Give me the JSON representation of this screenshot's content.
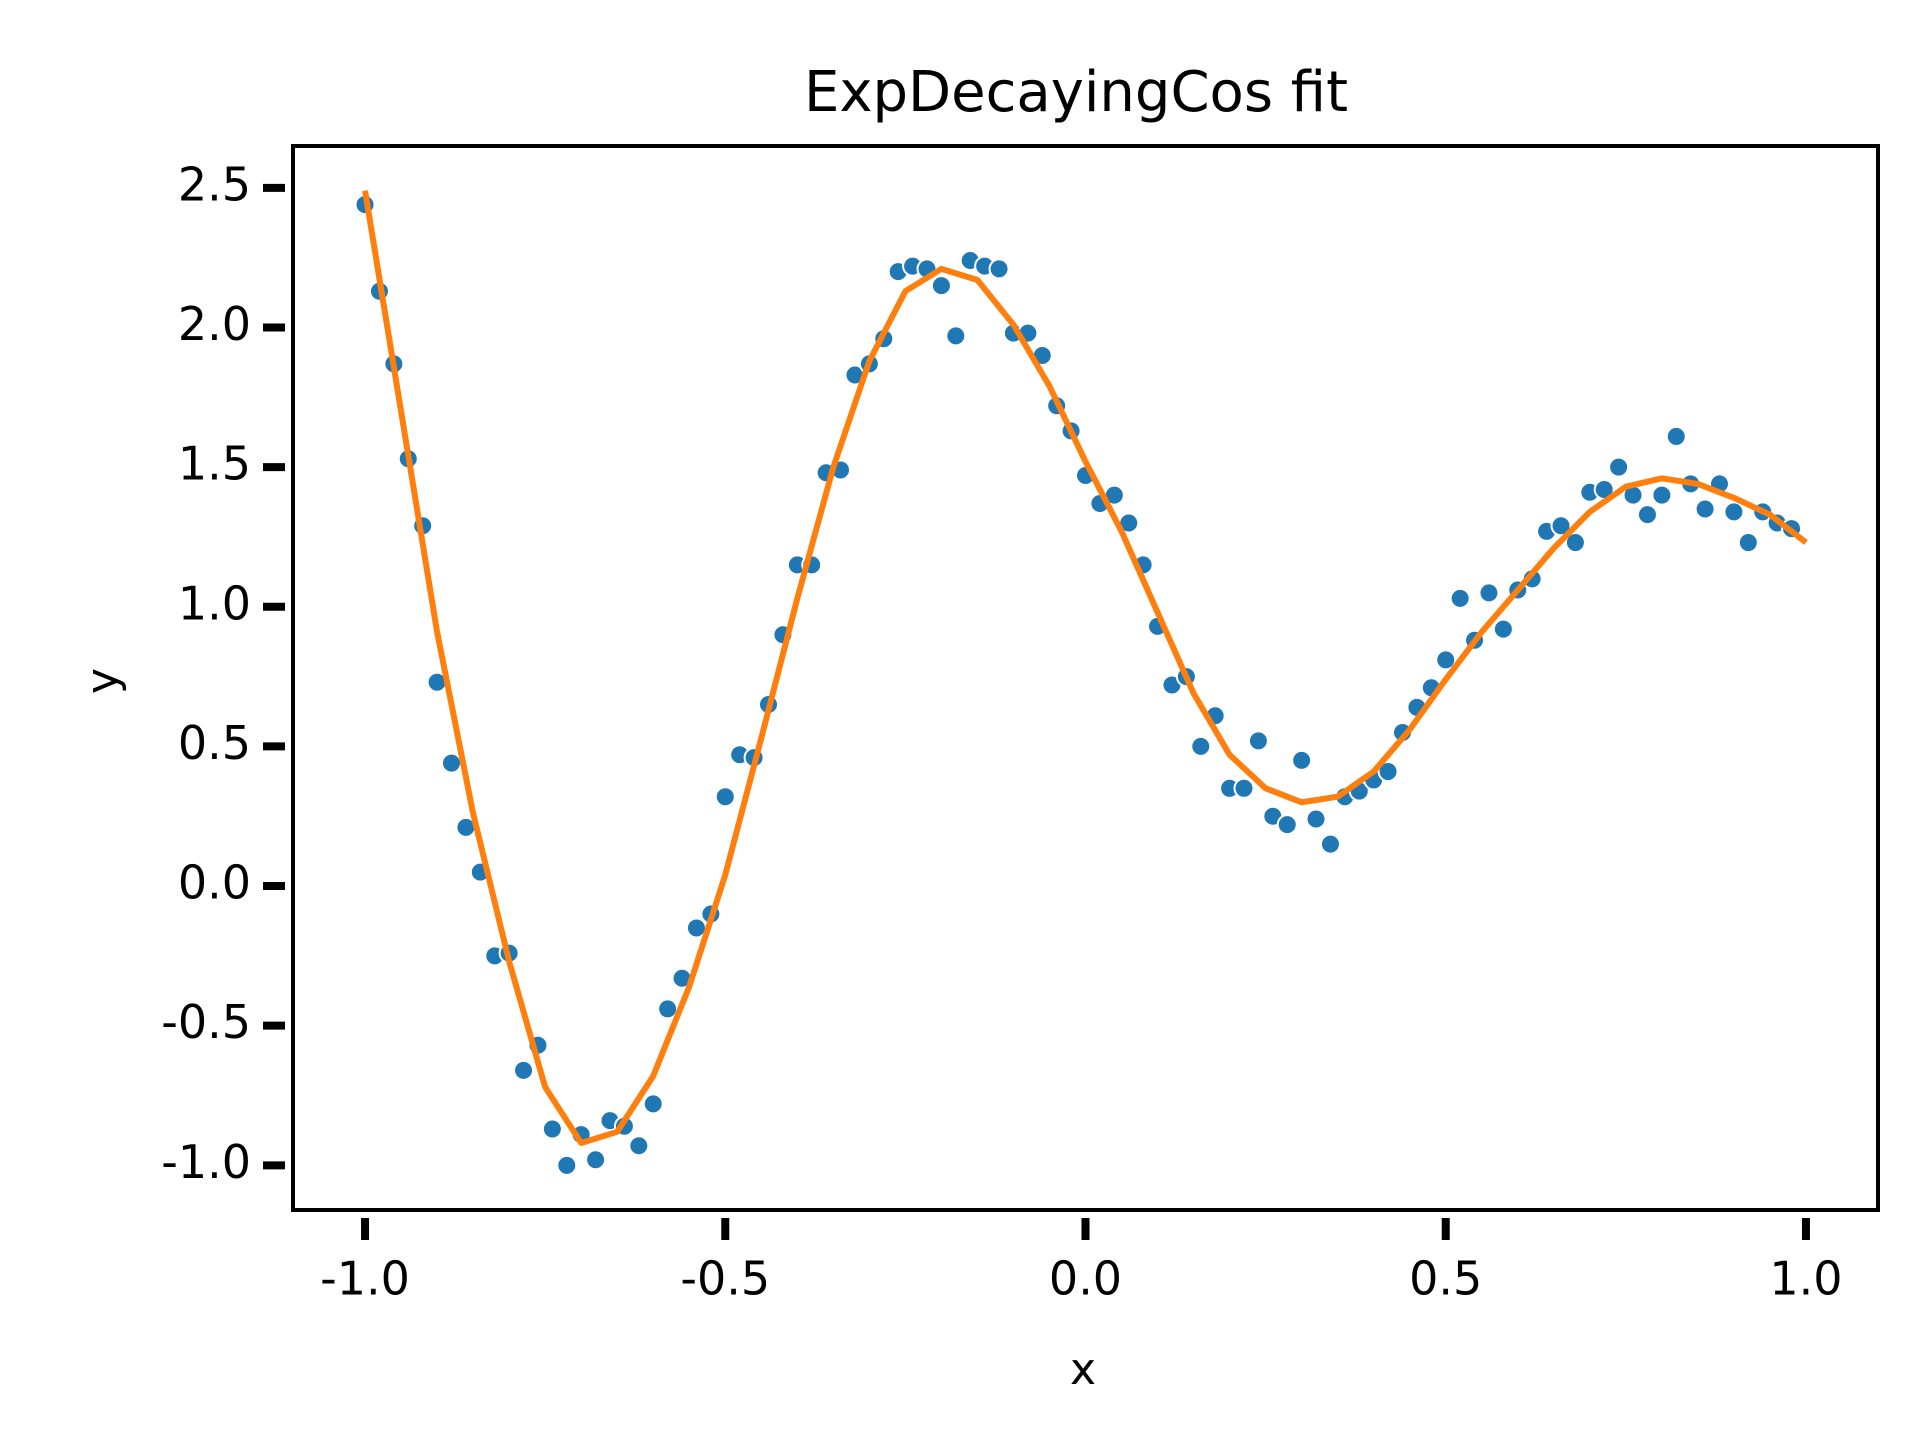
{
  "chart_data": {
    "type": "scatter",
    "title": "ExpDecayingCos fit",
    "xlabel": "x",
    "ylabel": "y",
    "xlim": [
      -1.1,
      1.1
    ],
    "ylim": [
      -1.16,
      2.65
    ],
    "xticks": [
      {
        "value": -1,
        "label": "-1.0"
      },
      -0.5,
      {
        "value": 0,
        "label": "0.0"
      },
      0.5,
      {
        "value": 1,
        "label": "1.0"
      }
    ],
    "yticks": [
      {
        "value": -1,
        "label": "-1.0"
      },
      -0.5,
      {
        "value": 0,
        "label": "0.0"
      },
      0.5,
      {
        "value": 1,
        "label": "1.0"
      },
      1.5,
      {
        "value": 2,
        "label": "2.0"
      },
      2.5
    ],
    "series": [
      {
        "type": "scatter",
        "color": "#1f77b4",
        "x": [
          -1.0,
          -0.98,
          -0.96,
          -0.94,
          -0.92,
          -0.9,
          -0.88,
          -0.86,
          -0.84,
          -0.82,
          -0.8,
          -0.78,
          -0.76,
          -0.74,
          -0.72,
          -0.7,
          -0.68,
          -0.66,
          -0.64,
          -0.62,
          -0.6,
          -0.58,
          -0.56,
          -0.54,
          -0.52,
          -0.5,
          -0.48,
          -0.46,
          -0.44,
          -0.42,
          -0.4,
          -0.38,
          -0.36,
          -0.34,
          -0.32,
          -0.3,
          -0.28,
          -0.26,
          -0.24,
          -0.22,
          -0.2,
          -0.18,
          -0.16,
          -0.14,
          -0.12,
          -0.1,
          -0.08,
          -0.06,
          -0.04,
          -0.02,
          0.0,
          0.02,
          0.04,
          0.06,
          0.08,
          0.1,
          0.12,
          0.14,
          0.16,
          0.18,
          0.2,
          0.22,
          0.24,
          0.26,
          0.28,
          0.3,
          0.32,
          0.34,
          0.36,
          0.38,
          0.4,
          0.42,
          0.44,
          0.46,
          0.48,
          0.5,
          0.52,
          0.54,
          0.56,
          0.58,
          0.6,
          0.62,
          0.64,
          0.66,
          0.68,
          0.7,
          0.72,
          0.74,
          0.76,
          0.78,
          0.8,
          0.82,
          0.84,
          0.86,
          0.88,
          0.9,
          0.92,
          0.94,
          0.96,
          0.98
        ],
        "values": [
          2.44,
          2.13,
          1.87,
          1.53,
          1.29,
          0.73,
          0.44,
          0.21,
          0.05,
          -0.25,
          -0.24,
          -0.66,
          -0.57,
          -0.87,
          -1.0,
          -0.89,
          -0.98,
          -0.84,
          -0.86,
          -0.93,
          -0.78,
          -0.44,
          -0.33,
          -0.15,
          -0.1,
          0.32,
          0.47,
          0.46,
          0.65,
          0.9,
          1.15,
          1.15,
          1.48,
          1.49,
          1.83,
          1.87,
          1.96,
          2.2,
          2.22,
          2.21,
          2.15,
          1.97,
          2.24,
          2.22,
          2.21,
          1.98,
          1.98,
          1.9,
          1.72,
          1.63,
          1.47,
          1.37,
          1.4,
          1.3,
          1.15,
          0.93,
          0.72,
          0.75,
          0.5,
          0.61,
          0.35,
          0.35,
          0.52,
          0.25,
          0.22,
          0.45,
          0.24,
          0.15,
          0.32,
          0.34,
          0.38,
          0.41,
          0.55,
          0.64,
          0.71,
          0.81,
          1.03,
          0.88,
          1.05,
          0.92,
          1.06,
          1.1,
          1.27,
          1.29,
          1.23,
          1.41,
          1.42,
          1.5,
          1.4,
          1.33,
          1.4,
          1.61,
          1.44,
          1.35,
          1.44,
          1.34,
          1.23,
          1.34,
          1.3,
          1.28
        ]
      },
      {
        "type": "line",
        "color": "#ff7f0e",
        "x": [
          -1.0,
          -0.95,
          -0.9,
          -0.85,
          -0.8,
          -0.75,
          -0.7,
          -0.65,
          -0.6,
          -0.55,
          -0.5,
          -0.45,
          -0.4,
          -0.35,
          -0.3,
          -0.25,
          -0.2,
          -0.15,
          -0.1,
          -0.05,
          0.0,
          0.05,
          0.1,
          0.15,
          0.2,
          0.25,
          0.3,
          0.35,
          0.4,
          0.45,
          0.5,
          0.55,
          0.6,
          0.65,
          0.7,
          0.75,
          0.8,
          0.85,
          0.9,
          0.95,
          1.0
        ],
        "values": [
          2.49,
          1.7,
          0.91,
          0.26,
          -0.27,
          -0.72,
          -0.92,
          -0.88,
          -0.68,
          -0.36,
          0.04,
          0.53,
          1.03,
          1.5,
          1.88,
          2.13,
          2.21,
          2.17,
          2.01,
          1.79,
          1.52,
          1.27,
          0.98,
          0.69,
          0.47,
          0.35,
          0.3,
          0.32,
          0.41,
          0.56,
          0.74,
          0.91,
          1.06,
          1.21,
          1.34,
          1.43,
          1.46,
          1.44,
          1.39,
          1.33,
          1.23
        ]
      }
    ]
  }
}
